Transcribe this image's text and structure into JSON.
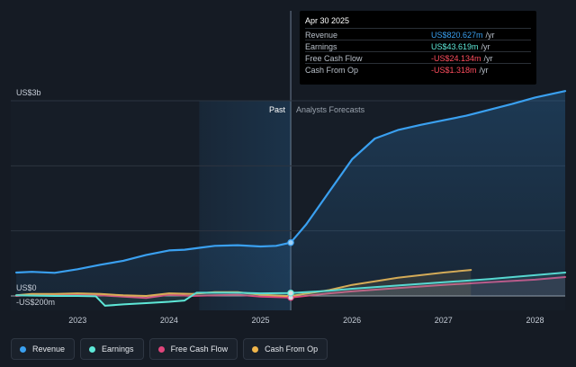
{
  "tooltip": {
    "date": "Apr 30 2025",
    "rows": [
      {
        "label": "Revenue",
        "value": "US$820.627m",
        "unit": "/yr",
        "color": "#3aa0f0"
      },
      {
        "label": "Earnings",
        "value": "US$43.619m",
        "unit": "/yr",
        "color": "#5ee8d8"
      },
      {
        "label": "Free Cash Flow",
        "value": "-US$24.134m",
        "unit": "/yr",
        "color": "#ff4d5e"
      },
      {
        "label": "Cash From Op",
        "value": "-US$1.318m",
        "unit": "/yr",
        "color": "#ff4d5e"
      }
    ]
  },
  "legend": [
    {
      "label": "Revenue",
      "color": "#3aa0f0"
    },
    {
      "label": "Earnings",
      "color": "#5ee8d8"
    },
    {
      "label": "Free Cash Flow",
      "color": "#e0457b"
    },
    {
      "label": "Cash From Op",
      "color": "#f0b54a"
    }
  ],
  "chart_data": {
    "type": "line",
    "title": "",
    "y_tick_labels": [
      "US$3b",
      "US$0",
      "-US$200m"
    ],
    "x_tick_labels": [
      "2023",
      "2024",
      "2025",
      "2026",
      "2027",
      "2028"
    ],
    "region_labels": {
      "past": "Past",
      "forecast": "Analysts Forecasts"
    },
    "ylim": [
      -200,
      3000
    ],
    "xlim": [
      2022.27,
      2028.33
    ],
    "past_region_start": 2024.33,
    "forecast_boundary": 2025.33,
    "series": [
      {
        "name": "Revenue",
        "color": "#3aa0f0",
        "x": [
          2022.33,
          2022.5,
          2022.75,
          2023.0,
          2023.25,
          2023.5,
          2023.75,
          2024.0,
          2024.17,
          2024.33,
          2024.5,
          2024.75,
          2025.0,
          2025.17,
          2025.33,
          2025.5,
          2025.75,
          2026.0,
          2026.25,
          2026.5,
          2026.75,
          2027.0,
          2027.25,
          2027.5,
          2027.75,
          2028.0,
          2028.33
        ],
        "y": [
          360,
          370,
          355,
          410,
          480,
          540,
          630,
          700,
          710,
          740,
          770,
          780,
          760,
          770,
          820,
          1100,
          1600,
          2100,
          2420,
          2550,
          2630,
          2700,
          2770,
          2860,
          2950,
          3050,
          3150
        ]
      },
      {
        "name": "Earnings",
        "color": "#5ee8d8",
        "x": [
          2022.33,
          2022.5,
          2022.75,
          2023.0,
          2023.2,
          2023.3,
          2023.5,
          2023.75,
          2024.0,
          2024.17,
          2024.3,
          2024.5,
          2024.75,
          2025.0,
          2025.33,
          2025.75,
          2026.0,
          2026.5,
          2027.0,
          2027.5,
          2028.0,
          2028.33
        ],
        "y": [
          10,
          5,
          0,
          0,
          -5,
          -150,
          -130,
          -110,
          -90,
          -70,
          50,
          50,
          50,
          40,
          44,
          80,
          110,
          160,
          210,
          260,
          320,
          360
        ]
      },
      {
        "name": "Free Cash Flow",
        "color": "#e0457b",
        "x": [
          2022.33,
          2022.5,
          2022.75,
          2023.0,
          2023.25,
          2023.5,
          2023.75,
          2024.0,
          2024.25,
          2024.5,
          2024.75,
          2025.0,
          2025.33,
          2025.75,
          2026.0,
          2026.5,
          2027.0,
          2027.5,
          2028.0,
          2028.33
        ],
        "y": [
          0,
          20,
          10,
          20,
          10,
          -10,
          -30,
          20,
          0,
          10,
          20,
          -10,
          -24,
          40,
          70,
          120,
          170,
          210,
          250,
          290
        ]
      },
      {
        "name": "Cash From Op",
        "color": "#f0b54a",
        "x": [
          2022.33,
          2022.5,
          2022.75,
          2023.0,
          2023.25,
          2023.5,
          2023.75,
          2024.0,
          2024.25,
          2024.5,
          2024.75,
          2025.0,
          2025.33,
          2025.75,
          2026.0,
          2026.5,
          2027.0,
          2027.3
        ],
        "y": [
          10,
          30,
          30,
          40,
          30,
          10,
          0,
          40,
          30,
          60,
          60,
          20,
          -1,
          90,
          170,
          280,
          360,
          400
        ]
      }
    ]
  }
}
